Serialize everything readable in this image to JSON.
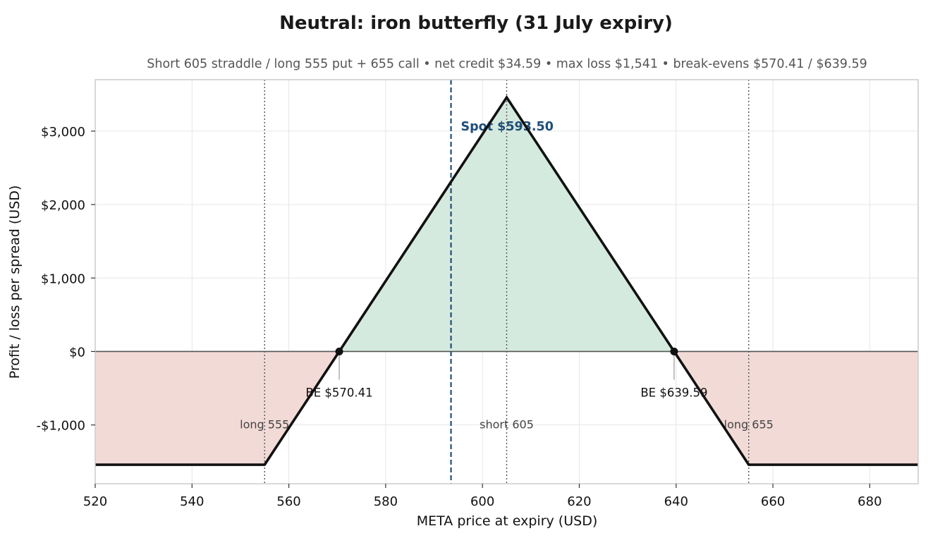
{
  "chart_data": {
    "type": "line",
    "title": "Neutral: iron butterfly (31 July expiry)",
    "subtitle": "Short 605 straddle / long 555 put + 655 call  •  net credit $34.59  •  max loss $1,541  •  break-evens $570.41 / $639.59",
    "xlabel": "META price at expiry (USD)",
    "ylabel": "Profit / loss per spread (USD)",
    "xlim": [
      520,
      690
    ],
    "ylim": [
      -1800,
      3700
    ],
    "x_ticks": [
      520,
      540,
      560,
      580,
      600,
      620,
      640,
      660,
      680
    ],
    "x_tick_labels": [
      "520",
      "540",
      "560",
      "580",
      "600",
      "620",
      "640",
      "660",
      "680"
    ],
    "y_ticks": [
      -1000,
      0,
      1000,
      2000,
      3000
    ],
    "y_tick_labels": [
      "-$1,000",
      "$0",
      "$1,000",
      "$2,000",
      "$3,000"
    ],
    "grid": true,
    "series": [
      {
        "x": [
          520,
          555,
          605,
          655,
          690
        ],
        "y": [
          -1541,
          -1541,
          3459,
          -1541,
          -1541
        ]
      }
    ],
    "strikes": [
      {
        "x": 555,
        "label": "long 555"
      },
      {
        "x": 605,
        "label": "short 605"
      },
      {
        "x": 655,
        "label": "long 655"
      }
    ],
    "break_evens": [
      {
        "x": 570.41,
        "label": "BE $570.41"
      },
      {
        "x": 639.59,
        "label": "BE $639.59"
      }
    ],
    "spot": {
      "x": 593.5,
      "label": "Spot $593.50"
    },
    "colors": {
      "profit_fill": "#d5eadf",
      "loss_fill": "#f2dad6",
      "payoff_line": "#111111",
      "spot_line": "#1f4e79",
      "strike_line": "#555555",
      "grid": "#e6e6e6"
    }
  }
}
